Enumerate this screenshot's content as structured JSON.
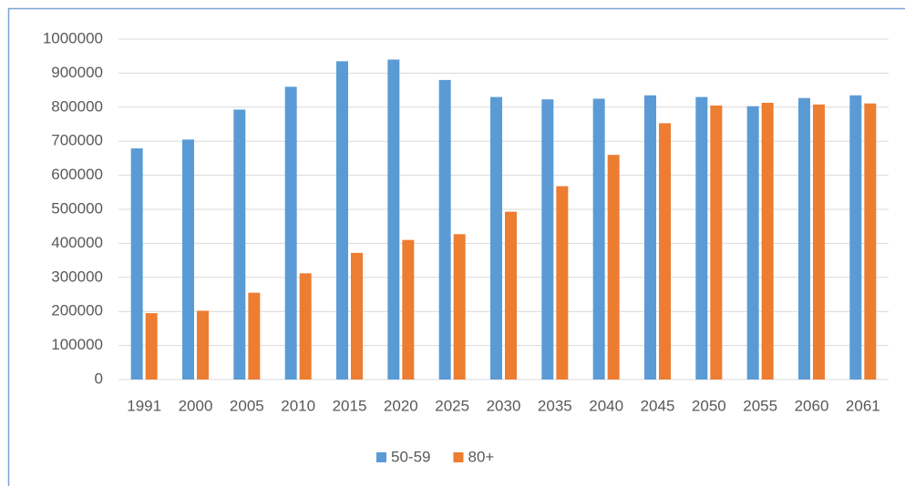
{
  "chart_data": {
    "type": "bar",
    "categories": [
      "1991",
      "2000",
      "2005",
      "2010",
      "2015",
      "2020",
      "2025",
      "2030",
      "2035",
      "2040",
      "2045",
      "2050",
      "2055",
      "2060",
      "2061"
    ],
    "series": [
      {
        "name": "50-59",
        "color": "#5b9bd5",
        "values": [
          679000,
          705000,
          793000,
          860000,
          935000,
          940000,
          880000,
          830000,
          823000,
          825000,
          835000,
          830000,
          803000,
          827000,
          835000
        ]
      },
      {
        "name": "80+",
        "color": "#ed7d31",
        "values": [
          195000,
          202000,
          255000,
          312000,
          372000,
          410000,
          427000,
          493000,
          568000,
          660000,
          753000,
          805000,
          813000,
          808000,
          811000
        ]
      }
    ],
    "ylim": [
      0,
      1000000
    ],
    "yticks": [
      0,
      100000,
      200000,
      300000,
      400000,
      500000,
      600000,
      700000,
      800000,
      900000,
      1000000
    ],
    "grid": true,
    "legend": "bottom"
  }
}
